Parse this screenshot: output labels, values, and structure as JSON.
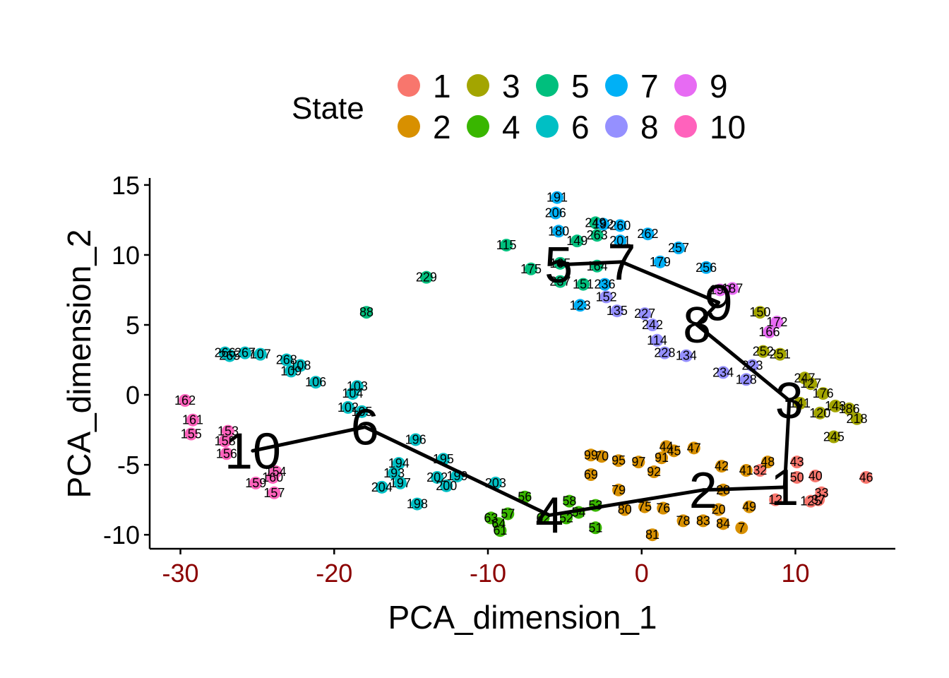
{
  "chart_data": {
    "type": "scatter",
    "xlabel": "PCA_dimension_1",
    "ylabel": "PCA_dimension_2",
    "xlim": [
      -32,
      16.5
    ],
    "ylim": [
      -11,
      15.5
    ],
    "x_ticks": [
      -30,
      -20,
      -10,
      0,
      10
    ],
    "y_ticks": [
      15,
      10,
      5,
      0,
      -5,
      -10
    ],
    "grid": false,
    "legend": {
      "title": "State",
      "position": "top",
      "entries": [
        {
          "state": "1",
          "color": "#F8766D"
        },
        {
          "state": "2",
          "color": "#D89000"
        },
        {
          "state": "3",
          "color": "#A3A500"
        },
        {
          "state": "4",
          "color": "#39B600"
        },
        {
          "state": "5",
          "color": "#00BF7D"
        },
        {
          "state": "6",
          "color": "#00BFC4"
        },
        {
          "state": "7",
          "color": "#00B0F6"
        },
        {
          "state": "8",
          "color": "#9590FF"
        },
        {
          "state": "9",
          "color": "#E76BF3"
        },
        {
          "state": "10",
          "color": "#FF62BC"
        }
      ]
    },
    "trajectory": {
      "color": "#000000",
      "nodes": [
        {
          "label": "1",
          "x": 9.3,
          "y": -6.6
        },
        {
          "label": "2",
          "x": 4.0,
          "y": -6.8
        },
        {
          "label": "3",
          "x": 9.6,
          "y": -0.4
        },
        {
          "label": "4",
          "x": -6.0,
          "y": -8.6
        },
        {
          "label": "5",
          "x": -5.4,
          "y": 9.3
        },
        {
          "label": "6",
          "x": -18.0,
          "y": -2.3
        },
        {
          "label": "7",
          "x": -1.3,
          "y": 9.5
        },
        {
          "label": "8",
          "x": 3.6,
          "y": 5.0
        },
        {
          "label": "9",
          "x": 5.0,
          "y": 6.6
        },
        {
          "label": "10",
          "x": -25.3,
          "y": -4.0
        }
      ],
      "edges": [
        [
          "10",
          "6"
        ],
        [
          "6",
          "4"
        ],
        [
          "4",
          "2"
        ],
        [
          "2",
          "1"
        ],
        [
          "1",
          "3"
        ],
        [
          "3",
          "8"
        ],
        [
          "8",
          "9"
        ],
        [
          "9",
          "7"
        ],
        [
          "7",
          "5"
        ]
      ]
    },
    "points": [
      {
        "id": "162",
        "x": -29.7,
        "y": -0.4,
        "state": "10"
      },
      {
        "id": "161",
        "x": -29.2,
        "y": -1.8,
        "state": "10"
      },
      {
        "id": "155",
        "x": -29.3,
        "y": -2.8,
        "state": "10"
      },
      {
        "id": "153",
        "x": -26.9,
        "y": -2.6,
        "state": "10"
      },
      {
        "id": "158",
        "x": -27.1,
        "y": -3.3,
        "state": "10"
      },
      {
        "id": "156",
        "x": -27.0,
        "y": -4.2,
        "state": "10"
      },
      {
        "id": "154",
        "x": -23.8,
        "y": -5.5,
        "state": "10"
      },
      {
        "id": "160",
        "x": -24.0,
        "y": -5.9,
        "state": "10"
      },
      {
        "id": "159",
        "x": -25.1,
        "y": -6.3,
        "state": "10"
      },
      {
        "id": "157",
        "x": -23.9,
        "y": -7.0,
        "state": "10"
      },
      {
        "id": "266",
        "x": -27.1,
        "y": 3.0,
        "state": "6"
      },
      {
        "id": "265",
        "x": -26.8,
        "y": 2.8,
        "state": "6"
      },
      {
        "id": "267",
        "x": -25.8,
        "y": 3.0,
        "state": "6"
      },
      {
        "id": "107",
        "x": -24.8,
        "y": 2.9,
        "state": "6"
      },
      {
        "id": "268",
        "x": -23.1,
        "y": 2.5,
        "state": "6"
      },
      {
        "id": "108",
        "x": -22.2,
        "y": 2.1,
        "state": "6"
      },
      {
        "id": "109",
        "x": -22.8,
        "y": 1.7,
        "state": "6"
      },
      {
        "id": "106",
        "x": -21.2,
        "y": 0.9,
        "state": "6"
      },
      {
        "id": "103",
        "x": -18.5,
        "y": 0.6,
        "state": "6"
      },
      {
        "id": "104",
        "x": -18.8,
        "y": 0.1,
        "state": "6"
      },
      {
        "id": "102",
        "x": -19.1,
        "y": -0.9,
        "state": "6"
      },
      {
        "id": "105",
        "x": -18.2,
        "y": -1.2,
        "state": "6"
      },
      {
        "id": "196",
        "x": -14.7,
        "y": -3.2,
        "state": "6"
      },
      {
        "id": "195",
        "x": -12.9,
        "y": -4.6,
        "state": "6"
      },
      {
        "id": "194",
        "x": -15.8,
        "y": -4.9,
        "state": "6"
      },
      {
        "id": "193",
        "x": -16.1,
        "y": -5.6,
        "state": "6"
      },
      {
        "id": "202",
        "x": -13.3,
        "y": -5.9,
        "state": "6"
      },
      {
        "id": "199",
        "x": -12.0,
        "y": -5.8,
        "state": "6"
      },
      {
        "id": "197",
        "x": -15.7,
        "y": -6.3,
        "state": "6"
      },
      {
        "id": "200",
        "x": -12.7,
        "y": -6.5,
        "state": "6"
      },
      {
        "id": "204",
        "x": -16.9,
        "y": -6.6,
        "state": "6"
      },
      {
        "id": "203",
        "x": -9.5,
        "y": -6.3,
        "state": "6"
      },
      {
        "id": "198",
        "x": -14.6,
        "y": -7.8,
        "state": "6"
      },
      {
        "id": "88",
        "x": -17.9,
        "y": 5.9,
        "state": "5"
      },
      {
        "id": "229",
        "x": -14.0,
        "y": 8.4,
        "state": "5"
      },
      {
        "id": "115",
        "x": -8.8,
        "y": 10.7,
        "state": "5"
      },
      {
        "id": "175",
        "x": -7.2,
        "y": 9.0,
        "state": "5"
      },
      {
        "id": "165",
        "x": -5.3,
        "y": 9.4,
        "state": "5"
      },
      {
        "id": "237",
        "x": -5.3,
        "y": 8.1,
        "state": "5"
      },
      {
        "id": "151",
        "x": -3.8,
        "y": 7.9,
        "state": "5"
      },
      {
        "id": "164",
        "x": -2.9,
        "y": 9.2,
        "state": "5"
      },
      {
        "id": "149",
        "x": -4.2,
        "y": 11.0,
        "state": "5"
      },
      {
        "id": "263",
        "x": -2.9,
        "y": 11.4,
        "state": "5"
      },
      {
        "id": "191",
        "x": -5.5,
        "y": 14.1,
        "state": "7"
      },
      {
        "id": "206",
        "x": -5.6,
        "y": 13.0,
        "state": "7"
      },
      {
        "id": "180",
        "x": -5.4,
        "y": 11.7,
        "state": "7"
      },
      {
        "id": "249",
        "x": -3.0,
        "y": 12.3,
        "state": "5"
      },
      {
        "id": "192",
        "x": -2.5,
        "y": 12.2,
        "state": "7"
      },
      {
        "id": "260",
        "x": -1.4,
        "y": 12.1,
        "state": "7"
      },
      {
        "id": "262",
        "x": 0.4,
        "y": 11.5,
        "state": "7"
      },
      {
        "id": "201",
        "x": -1.4,
        "y": 11.0,
        "state": "7"
      },
      {
        "id": "257",
        "x": 2.4,
        "y": 10.5,
        "state": "7"
      },
      {
        "id": "256",
        "x": 4.2,
        "y": 9.1,
        "state": "7"
      },
      {
        "id": "179",
        "x": 1.2,
        "y": 9.5,
        "state": "7"
      },
      {
        "id": "236",
        "x": -2.4,
        "y": 7.9,
        "state": "7"
      },
      {
        "id": "123",
        "x": -4.0,
        "y": 6.4,
        "state": "7"
      },
      {
        "id": "152",
        "x": -2.3,
        "y": 7.0,
        "state": "8"
      },
      {
        "id": "135",
        "x": -1.6,
        "y": 6.0,
        "state": "8"
      },
      {
        "id": "227",
        "x": 0.2,
        "y": 5.8,
        "state": "8"
      },
      {
        "id": "242",
        "x": 0.7,
        "y": 5.0,
        "state": "8"
      },
      {
        "id": "114",
        "x": 1.0,
        "y": 3.9,
        "state": "8"
      },
      {
        "id": "228",
        "x": 1.5,
        "y": 3.0,
        "state": "8"
      },
      {
        "id": "134",
        "x": 2.9,
        "y": 2.8,
        "state": "8"
      },
      {
        "id": "234",
        "x": 5.3,
        "y": 1.6,
        "state": "8"
      },
      {
        "id": "128",
        "x": 6.8,
        "y": 1.1,
        "state": "8"
      },
      {
        "id": "223",
        "x": 7.2,
        "y": 2.1,
        "state": "8"
      },
      {
        "id": "190",
        "x": 5.1,
        "y": 7.5,
        "state": "9"
      },
      {
        "id": "187",
        "x": 5.9,
        "y": 7.6,
        "state": "9"
      },
      {
        "id": "172",
        "x": 8.8,
        "y": 5.2,
        "state": "9"
      },
      {
        "id": "166",
        "x": 8.3,
        "y": 4.5,
        "state": "9"
      },
      {
        "id": "150",
        "x": 7.7,
        "y": 5.9,
        "state": "3"
      },
      {
        "id": "252",
        "x": 7.9,
        "y": 3.1,
        "state": "3"
      },
      {
        "id": "251",
        "x": 9.0,
        "y": 2.9,
        "state": "3"
      },
      {
        "id": "247",
        "x": 10.6,
        "y": 1.2,
        "state": "3"
      },
      {
        "id": "127",
        "x": 11.0,
        "y": 0.8,
        "state": "3"
      },
      {
        "id": "176",
        "x": 11.8,
        "y": 0.1,
        "state": "3"
      },
      {
        "id": "141",
        "x": 10.3,
        "y": -0.6,
        "state": "3"
      },
      {
        "id": "120",
        "x": 11.6,
        "y": -1.3,
        "state": "3"
      },
      {
        "id": "143",
        "x": 12.6,
        "y": -0.8,
        "state": "3"
      },
      {
        "id": "186",
        "x": 13.5,
        "y": -1.0,
        "state": "3"
      },
      {
        "id": "218",
        "x": 14.0,
        "y": -1.7,
        "state": "3"
      },
      {
        "id": "245",
        "x": 12.5,
        "y": -3.0,
        "state": "3"
      },
      {
        "id": "43",
        "x": 10.1,
        "y": -4.8,
        "state": "1"
      },
      {
        "id": "40",
        "x": 11.3,
        "y": -5.8,
        "state": "1"
      },
      {
        "id": "46",
        "x": 14.6,
        "y": -5.9,
        "state": "1"
      },
      {
        "id": "50",
        "x": 10.1,
        "y": -5.9,
        "state": "1"
      },
      {
        "id": "33",
        "x": 11.7,
        "y": -7.0,
        "state": "1"
      },
      {
        "id": "37",
        "x": 11.5,
        "y": -7.5,
        "state": "1"
      },
      {
        "id": "125",
        "x": 11.0,
        "y": -7.6,
        "state": "1"
      },
      {
        "id": "12",
        "x": 8.7,
        "y": -7.5,
        "state": "1"
      },
      {
        "id": "32",
        "x": 7.7,
        "y": -5.4,
        "state": "1"
      },
      {
        "id": "44",
        "x": 1.6,
        "y": -3.7,
        "state": "2"
      },
      {
        "id": "45",
        "x": 2.1,
        "y": -4.0,
        "state": "2"
      },
      {
        "id": "47",
        "x": 3.4,
        "y": -3.8,
        "state": "2"
      },
      {
        "id": "99",
        "x": -3.3,
        "y": -4.3,
        "state": "2"
      },
      {
        "id": "70",
        "x": -2.6,
        "y": -4.4,
        "state": "2"
      },
      {
        "id": "95",
        "x": -1.5,
        "y": -4.7,
        "state": "2"
      },
      {
        "id": "97",
        "x": -0.2,
        "y": -4.8,
        "state": "2"
      },
      {
        "id": "91",
        "x": 1.3,
        "y": -4.5,
        "state": "2"
      },
      {
        "id": "42",
        "x": 5.2,
        "y": -5.1,
        "state": "2"
      },
      {
        "id": "41",
        "x": 6.8,
        "y": -5.4,
        "state": "2"
      },
      {
        "id": "48",
        "x": 8.2,
        "y": -4.8,
        "state": "2"
      },
      {
        "id": "69",
        "x": -3.3,
        "y": -5.7,
        "state": "2"
      },
      {
        "id": "92",
        "x": 0.8,
        "y": -5.5,
        "state": "2"
      },
      {
        "id": "79",
        "x": -1.5,
        "y": -6.8,
        "state": "2"
      },
      {
        "id": "80",
        "x": -1.1,
        "y": -8.2,
        "state": "2"
      },
      {
        "id": "75",
        "x": 0.2,
        "y": -8.0,
        "state": "2"
      },
      {
        "id": "76",
        "x": 1.4,
        "y": -8.1,
        "state": "2"
      },
      {
        "id": "78",
        "x": 2.7,
        "y": -9.0,
        "state": "2"
      },
      {
        "id": "83",
        "x": 4.0,
        "y": -9.0,
        "state": "2"
      },
      {
        "id": "84",
        "x": 5.3,
        "y": -9.2,
        "state": "2"
      },
      {
        "id": "7",
        "x": 6.5,
        "y": -9.5,
        "state": "2"
      },
      {
        "id": "81",
        "x": 0.7,
        "y": -10.0,
        "state": "2"
      },
      {
        "id": "49",
        "x": 7.0,
        "y": -8.0,
        "state": "2"
      },
      {
        "id": "20",
        "x": 5.0,
        "y": -8.2,
        "state": "2"
      },
      {
        "id": "28",
        "x": 5.3,
        "y": -6.8,
        "state": "2"
      },
      {
        "id": "56",
        "x": -7.6,
        "y": -7.3,
        "state": "4"
      },
      {
        "id": "58",
        "x": -4.7,
        "y": -7.6,
        "state": "4"
      },
      {
        "id": "57",
        "x": -8.7,
        "y": -8.5,
        "state": "4"
      },
      {
        "id": "63",
        "x": -9.8,
        "y": -8.8,
        "state": "4"
      },
      {
        "id": "64",
        "x": -9.3,
        "y": -9.2,
        "state": "4"
      },
      {
        "id": "61",
        "x": -9.2,
        "y": -9.7,
        "state": "4"
      },
      {
        "id": "62",
        "x": -6.4,
        "y": -8.8,
        "state": "4"
      },
      {
        "id": "52",
        "x": -4.9,
        "y": -8.8,
        "state": "4"
      },
      {
        "id": "53",
        "x": -3.0,
        "y": -7.9,
        "state": "4"
      },
      {
        "id": "54",
        "x": -4.1,
        "y": -8.4,
        "state": "4"
      },
      {
        "id": "51",
        "x": -3.0,
        "y": -9.5,
        "state": "4"
      }
    ]
  }
}
